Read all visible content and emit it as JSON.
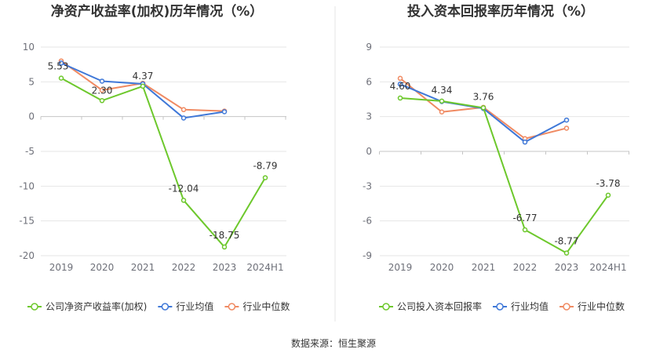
{
  "source_label": "数据来源：恒生聚源",
  "chart_data": [
    {
      "type": "line",
      "title": "净资产收益率(加权)历年情况（%）",
      "categories": [
        "2019",
        "2020",
        "2021",
        "2022",
        "2023",
        "2024H1"
      ],
      "ylim": [
        -20,
        10
      ],
      "yticks": [
        10,
        5,
        0,
        -5,
        -10,
        -15,
        -20
      ],
      "grid": true,
      "legend_position": "bottom-left",
      "series": [
        {
          "name": "公司净资产收益率(加权)",
          "color": "#6dc82c",
          "values": [
            5.53,
            2.3,
            4.37,
            -12.04,
            -18.75,
            -8.79
          ],
          "labels": [
            "5.53",
            "2.30",
            "4.37",
            "-12.04",
            "-18.75",
            "-8.79"
          ]
        },
        {
          "name": "行业均值",
          "color": "#3f78d8",
          "values": [
            7.7,
            5.1,
            4.7,
            -0.2,
            0.7,
            null
          ]
        },
        {
          "name": "行业中位数",
          "color": "#f08a62",
          "values": [
            8.0,
            3.8,
            4.8,
            1.0,
            0.8,
            null
          ]
        }
      ]
    },
    {
      "type": "line",
      "title": "投入资本回报率历年情况（%）",
      "categories": [
        "2019",
        "2020",
        "2021",
        "2022",
        "2023",
        "2024H1"
      ],
      "ylim": [
        -9,
        9
      ],
      "yticks": [
        9,
        6,
        3,
        0,
        -3,
        -6,
        -9
      ],
      "grid": true,
      "legend_position": "bottom-left",
      "series": [
        {
          "name": "公司投入资本回报率",
          "color": "#6dc82c",
          "values": [
            4.6,
            4.34,
            3.76,
            -6.77,
            -8.77,
            -3.78
          ],
          "labels": [
            "4.60",
            "4.34",
            "3.76",
            "-6.77",
            "-8.77",
            "-3.78"
          ]
        },
        {
          "name": "行业均值",
          "color": "#3f78d8",
          "values": [
            5.8,
            4.3,
            3.7,
            0.8,
            2.7,
            null
          ]
        },
        {
          "name": "行业中位数",
          "color": "#f08a62",
          "values": [
            6.3,
            3.4,
            3.8,
            1.1,
            2.0,
            null
          ]
        }
      ]
    }
  ]
}
